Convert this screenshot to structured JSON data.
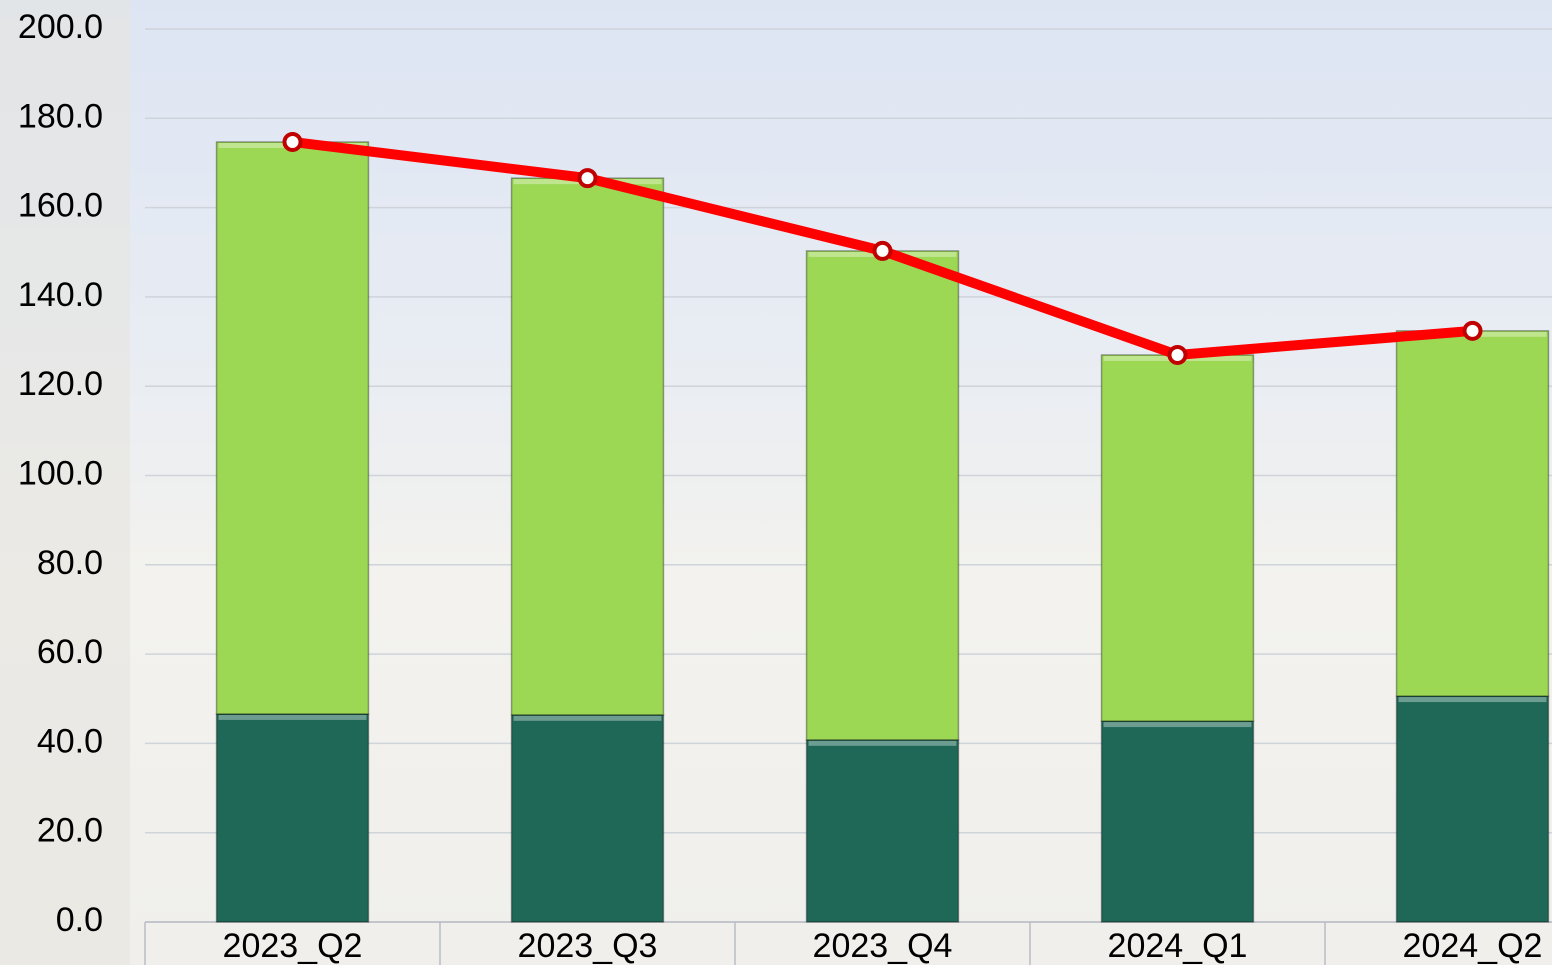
{
  "chart_data": {
    "type": "bar",
    "stacked": true,
    "categories": [
      "2023_Q2",
      "2023_Q3",
      "2023_Q4",
      "2024_Q1",
      "2024_Q2"
    ],
    "series": [
      {
        "type": "bar",
        "color": "#1f6857",
        "values": [
          46.6,
          46.4,
          40.8,
          45.0,
          50.6
        ]
      },
      {
        "type": "bar",
        "color": "#9dd854",
        "values": [
          128.1,
          120.2,
          109.5,
          82.0,
          81.8
        ]
      },
      {
        "type": "line",
        "color": "#ff0000",
        "values": [
          174.7,
          166.6,
          150.3,
          127.0,
          132.4
        ]
      }
    ],
    "ylim": [
      0,
      200
    ],
    "yticks": [
      {
        "value": 0,
        "label": "0.0"
      },
      {
        "value": 20,
        "label": "20.0"
      },
      {
        "value": 40,
        "label": "40.0"
      },
      {
        "value": 60,
        "label": "60.0"
      },
      {
        "value": 80,
        "label": "80.0"
      },
      {
        "value": 100,
        "label": "100.0"
      },
      {
        "value": 120,
        "label": "120.0"
      },
      {
        "value": 140,
        "label": "140.0"
      },
      {
        "value": 160,
        "label": "160.0"
      },
      {
        "value": 180,
        "label": "180.0"
      },
      {
        "value": 200,
        "label": "200.0"
      }
    ],
    "grid": true
  }
}
